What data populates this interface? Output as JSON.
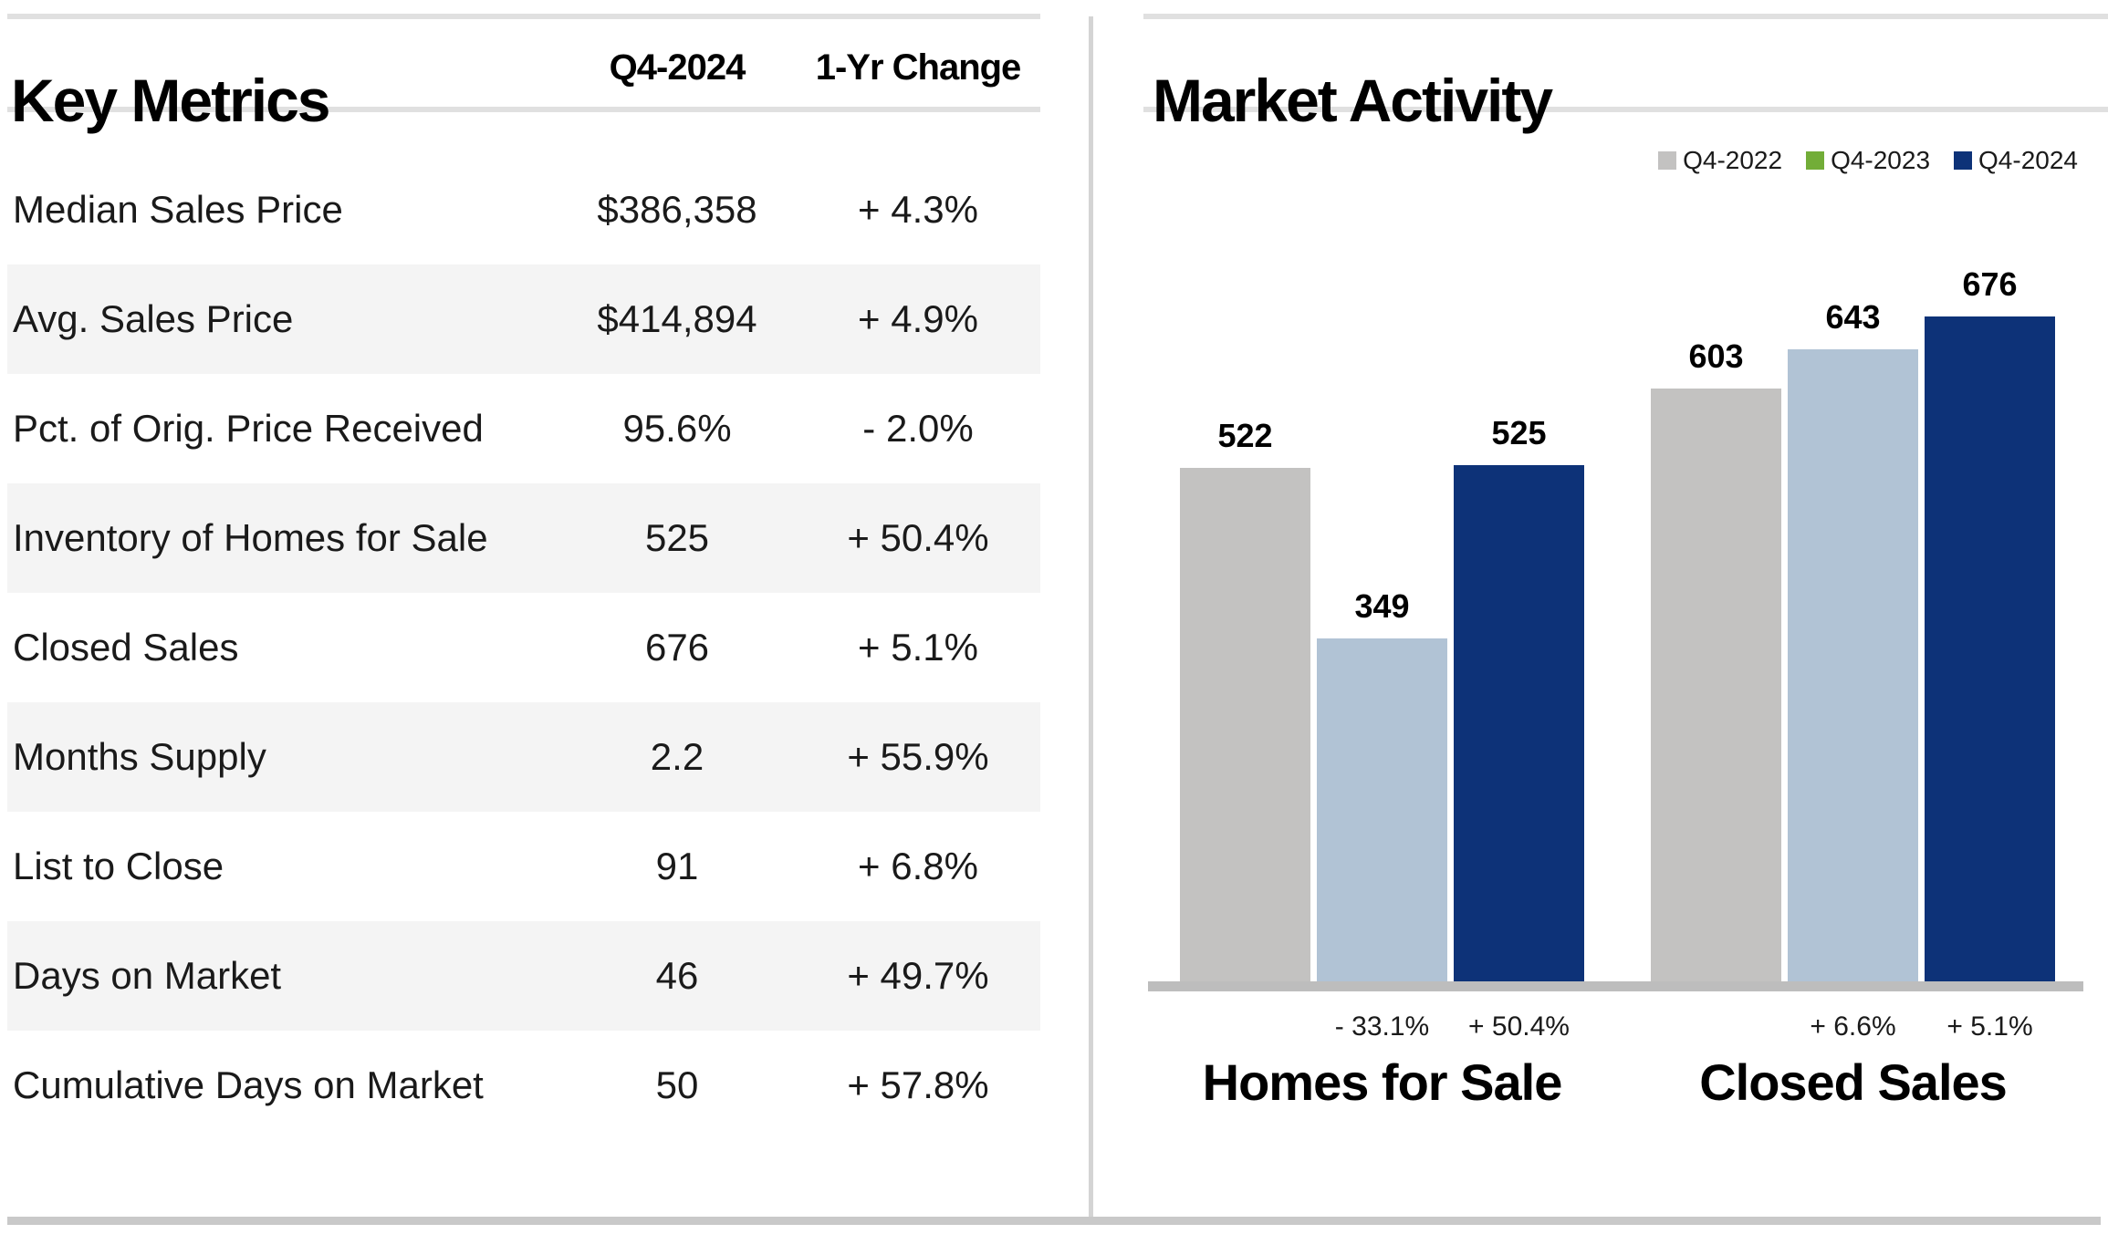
{
  "left_panel": {
    "title": "Key Metrics",
    "columns": [
      "Q4-2024",
      "1-Yr Change"
    ],
    "rows": [
      {
        "label": "Median Sales Price",
        "value": "$386,358",
        "change": "+ 4.3%"
      },
      {
        "label": "Avg. Sales Price",
        "value": "$414,894",
        "change": "+ 4.9%"
      },
      {
        "label": "Pct. of Orig. Price Received",
        "value": "95.6%",
        "change": "- 2.0%"
      },
      {
        "label": "Inventory of Homes for Sale",
        "value": "525",
        "change": "+ 50.4%"
      },
      {
        "label": "Closed Sales",
        "value": "676",
        "change": "+ 5.1%"
      },
      {
        "label": "Months Supply",
        "value": "2.2",
        "change": "+ 55.9%"
      },
      {
        "label": "List to Close",
        "value": "91",
        "change": "+ 6.8%"
      },
      {
        "label": "Days on Market",
        "value": "46",
        "change": "+ 49.7%"
      },
      {
        "label": "Cumulative Days on Market",
        "value": "50",
        "change": "+ 57.8%"
      }
    ]
  },
  "right_panel": {
    "title": "Market Activity",
    "legend": [
      {
        "label": "Q4-2022",
        "color": "#c3c2c1"
      },
      {
        "label": "Q4-2023",
        "color": "#72ad38"
      },
      {
        "label": "Q4-2024",
        "color": "#0d3278"
      }
    ]
  },
  "chart_data": {
    "type": "bar",
    "title": "Market Activity",
    "categories": [
      "Homes for Sale",
      "Closed Sales"
    ],
    "series": [
      {
        "name": "Q4-2022",
        "values": [
          522,
          603
        ],
        "bar_color": "#c3c2c1"
      },
      {
        "name": "Q4-2023",
        "values": [
          349,
          643
        ],
        "bar_color": "#b1c3d5",
        "legend_color": "#72ad38"
      },
      {
        "name": "Q4-2024",
        "values": [
          525,
          676
        ],
        "bar_color": "#0d3278"
      }
    ],
    "pct_change_labels": [
      [
        "- 33.1%",
        "+ 50.4%"
      ],
      [
        "+ 6.6%",
        "+ 5.1%"
      ]
    ],
    "value_labels": true,
    "grid": false,
    "ylim": [
      0,
      700
    ],
    "legend_position": "top-right",
    "axis_color": "#bdbdbd"
  }
}
